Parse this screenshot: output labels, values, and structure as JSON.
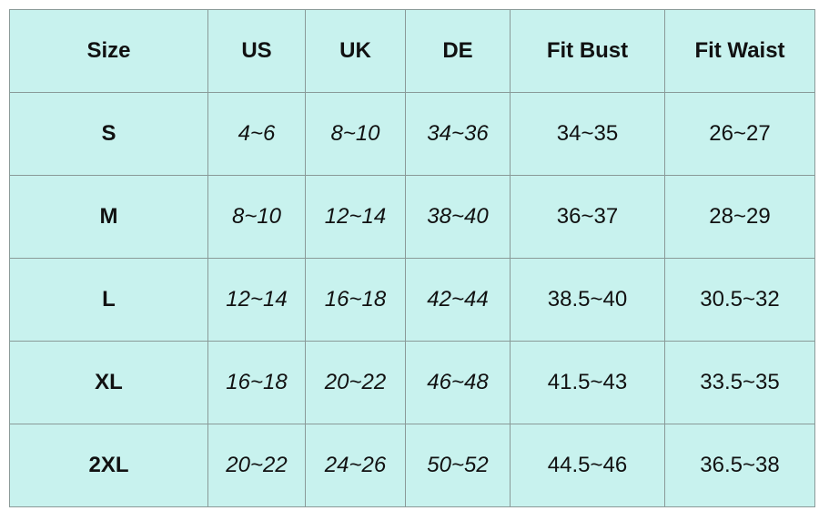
{
  "table": {
    "header": [
      "Size",
      "US",
      "UK",
      "DE",
      "Fit Bust",
      "Fit Waist"
    ],
    "rows": [
      [
        "S",
        "4~6",
        "8~10",
        "34~36",
        "34~35",
        "26~27"
      ],
      [
        "M",
        "8~10",
        "12~14",
        "38~40",
        "36~37",
        "28~29"
      ],
      [
        "L",
        "12~14",
        "16~18",
        "42~44",
        "38.5~40",
        "30.5~32"
      ],
      [
        "XL",
        "16~18",
        "20~22",
        "46~48",
        "41.5~43",
        "33.5~35"
      ],
      [
        "2XL",
        "20~22",
        "24~26",
        "50~52",
        "44.5~46",
        "36.5~38"
      ]
    ]
  }
}
